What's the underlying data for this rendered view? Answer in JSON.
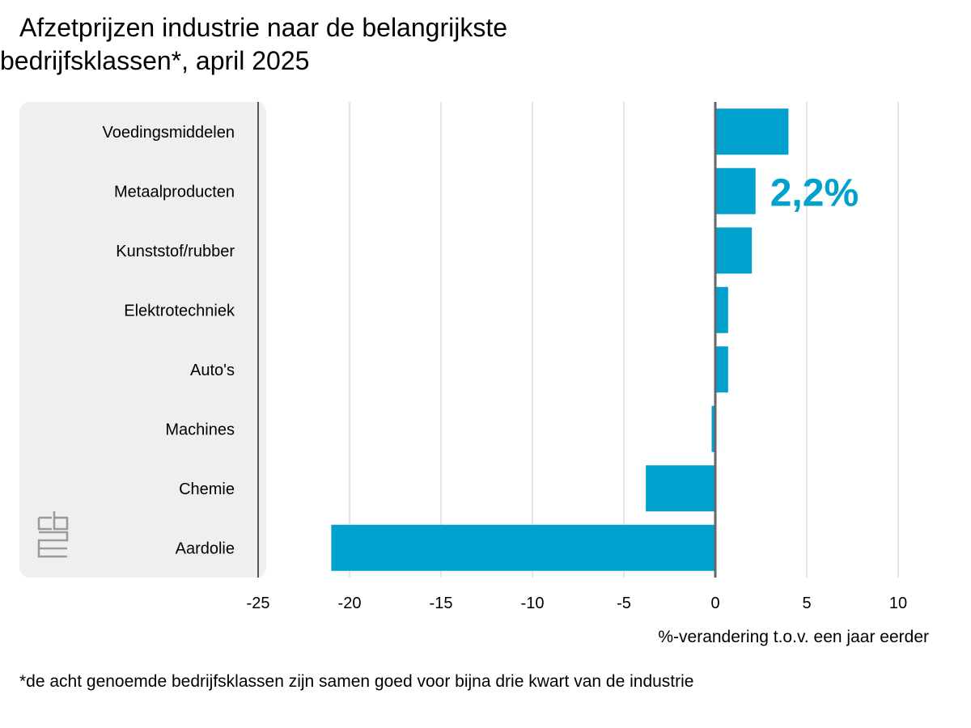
{
  "chart_data": {
    "type": "bar",
    "orientation": "horizontal",
    "title_lines": [
      "Afzetprijzen industrie naar de belangrijkste",
      "bedrijfsklassen*, april 2025"
    ],
    "categories": [
      "Voedingsmiddelen",
      "Metaalproducten",
      "Kunststof/rubber",
      "Elektrotechniek",
      "Auto's",
      "Machines",
      "Chemie",
      "Aardolie"
    ],
    "values": [
      4.0,
      2.2,
      2.0,
      0.7,
      0.7,
      -0.2,
      -3.8,
      -21.0
    ],
    "xlim": [
      -25,
      10
    ],
    "x_ticks": [
      "-25",
      "-20",
      "-15",
      "-10",
      "-5",
      "0",
      "5",
      "10"
    ],
    "xlabel": "%-verandering t.o.v. een jaar eerder",
    "ylabel": "",
    "grid": true,
    "highlight_annotation": {
      "category": "Metaalproducten",
      "text": "2,2%"
    },
    "footnote": "*de acht genoemde bedrijfsklassen zijn samen goed voor bijna drie kwart van de industrie",
    "bar_color": "#00a1cd",
    "annotation_color": "#00a1cd",
    "panel_color": "#efefef",
    "logo": "cbs-logo"
  }
}
